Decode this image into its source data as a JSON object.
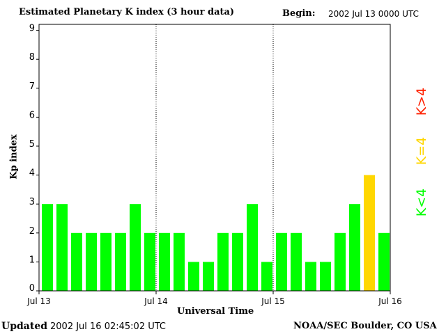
{
  "header": {
    "title": "Estimated Planetary K index (3 hour data)",
    "begin_label": "Begin:",
    "begin_value": "2002 Jul 13 0000 UTC"
  },
  "footer": {
    "updated_label": "Updated",
    "updated_value": "2002 Jul 16 02:45:02 UTC",
    "source": "NOAA/SEC Boulder, CO USA"
  },
  "legend": [
    {
      "label": "K<4",
      "color": "#00ff00"
    },
    {
      "label": "K=4",
      "color": "#ffd700"
    },
    {
      "label": "K>4",
      "color": "#ff2000"
    }
  ],
  "chart_data": {
    "type": "bar",
    "title": "Estimated Planetary K index (3 hour data)",
    "xlabel": "Universal Time",
    "ylabel": "Kp index",
    "ylim": [
      0,
      9
    ],
    "yticks": [
      "0",
      "1",
      "2",
      "3",
      "4",
      "5",
      "6",
      "7",
      "8",
      "9"
    ],
    "xticks": [
      "Jul 13",
      "Jul 14",
      "Jul 15",
      "Jul 16"
    ],
    "grid": "dotted vertical lines at day boundaries",
    "interval_hours": 3,
    "values": [
      3,
      3,
      2,
      2,
      2,
      2,
      3,
      2,
      2,
      2,
      1,
      1,
      2,
      2,
      3,
      1,
      2,
      2,
      1,
      1,
      2,
      3,
      4,
      2
    ],
    "colors": {
      "below4": "#00ff00",
      "equal4": "#ffd700",
      "above4": "#ff2000"
    }
  }
}
